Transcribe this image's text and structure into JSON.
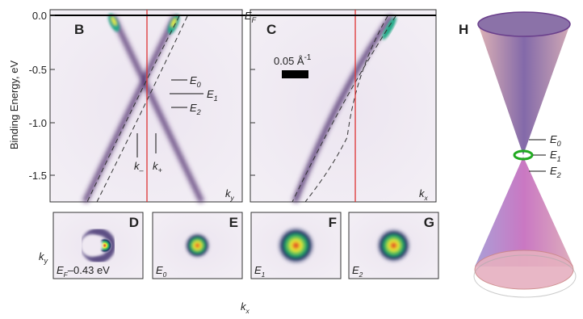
{
  "y_axis": {
    "label": "Binding Energy, eV",
    "ticks": [
      "0.0",
      "-0.5",
      "-1.0",
      "-1.5"
    ]
  },
  "fermi": {
    "main": "E",
    "sub": "F"
  },
  "panel_b": {
    "label": "B",
    "energies": [
      {
        "main": "E",
        "sub": "0"
      },
      {
        "main": "E",
        "sub": "1"
      },
      {
        "main": "E",
        "sub": "2"
      }
    ],
    "k_minus": {
      "main": "k",
      "sub": "–"
    },
    "k_plus": {
      "main": "k",
      "sub": "+"
    },
    "axis": {
      "main": "k",
      "sub": "y"
    }
  },
  "panel_c": {
    "label": "C",
    "scale": {
      "main": "0.05 Å",
      "sup": "-1"
    },
    "axis": {
      "main": "k",
      "sub": "x"
    }
  },
  "maps": [
    {
      "label": "D",
      "caption": {
        "main": "E",
        "sub": "F",
        "rest": "–0.43 eV"
      }
    },
    {
      "label": "E",
      "caption": {
        "main": "E",
        "sub": "0"
      }
    },
    {
      "label": "F",
      "caption": {
        "main": "E",
        "sub": "1"
      }
    },
    {
      "label": "G",
      "caption": {
        "main": "E",
        "sub": "2"
      }
    }
  ],
  "map_axes": {
    "y": {
      "main": "k",
      "sub": "y"
    },
    "x": {
      "main": "k",
      "sub": "x"
    }
  },
  "panel_h": {
    "label": "H",
    "energies": [
      {
        "main": "E",
        "sub": "0"
      },
      {
        "main": "E",
        "sub": "1"
      },
      {
        "main": "E",
        "sub": "2"
      }
    ]
  }
}
